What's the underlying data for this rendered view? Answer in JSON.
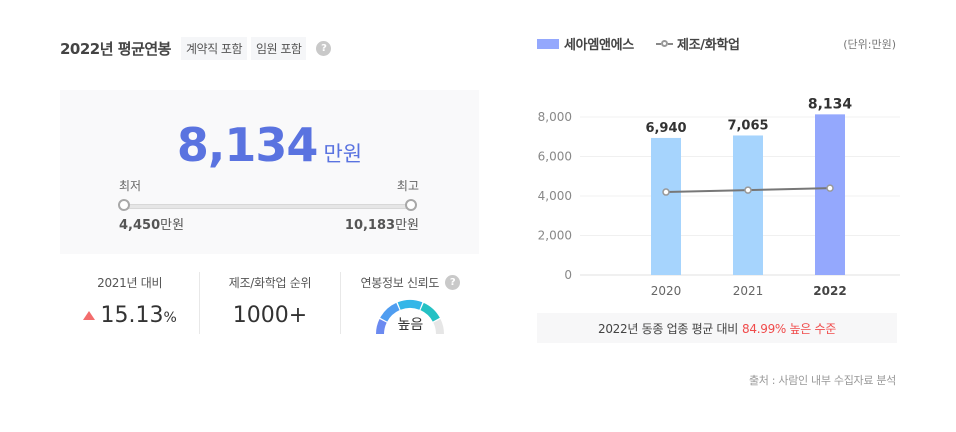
{
  "header": {
    "title": "2022년 평균연봉",
    "tags": [
      "계약직 포함",
      "임원 포함"
    ],
    "help_icon": "question-circle-icon"
  },
  "summary": {
    "value": "8,134",
    "unit": "만원",
    "min_label": "최저",
    "max_label": "최고",
    "min_value": "4,450",
    "max_value": "10,183",
    "value_unit": "만원"
  },
  "stats": [
    {
      "label": "2021년 대비",
      "value": "15.13",
      "suffix": "%",
      "trend": "up",
      "trend_color": "#f36d6d"
    },
    {
      "label": "제조/화학업 순위",
      "value": "1000+"
    },
    {
      "label": "연봉정보 신뢰도",
      "value": "높음",
      "help_icon": "question-circle-icon",
      "gauge_colors": [
        "#6b8af0",
        "#4f9df0",
        "#33b6e8",
        "#25c1c4",
        "#e6e6e6"
      ]
    }
  ],
  "legend": {
    "company": "세아엠앤에스",
    "industry": "제조/화학업",
    "unit_note": "(단위:만원)"
  },
  "chart_data": {
    "type": "bar",
    "title": "",
    "xlabel": "",
    "ylabel": "",
    "categories": [
      "2020",
      "2021",
      "2022"
    ],
    "ylim": [
      0,
      8000
    ],
    "yticks": [
      "0",
      "2,000",
      "4,000",
      "6,000",
      "8,000"
    ],
    "grid": true,
    "series": [
      {
        "name": "세아엠앤에스",
        "type": "bar",
        "values": [
          6940,
          7065,
          8134
        ],
        "labels": [
          "6,940",
          "7,065",
          "8,134"
        ],
        "colors": [
          "#a6d4fd",
          "#a6d4fd",
          "#94a8fd"
        ]
      },
      {
        "name": "제조/화학업",
        "type": "line",
        "values": [
          4200,
          4300,
          4400
        ],
        "color": "#777777"
      }
    ],
    "legend_position": "top"
  },
  "comparison": {
    "prefix": "2022년 동종 업종 평균 대비",
    "highlight": "84.99% 높은 수준",
    "highlight_color": "#f04b4b"
  },
  "source": "출처 : 사람인 내부 수집자료 분석"
}
